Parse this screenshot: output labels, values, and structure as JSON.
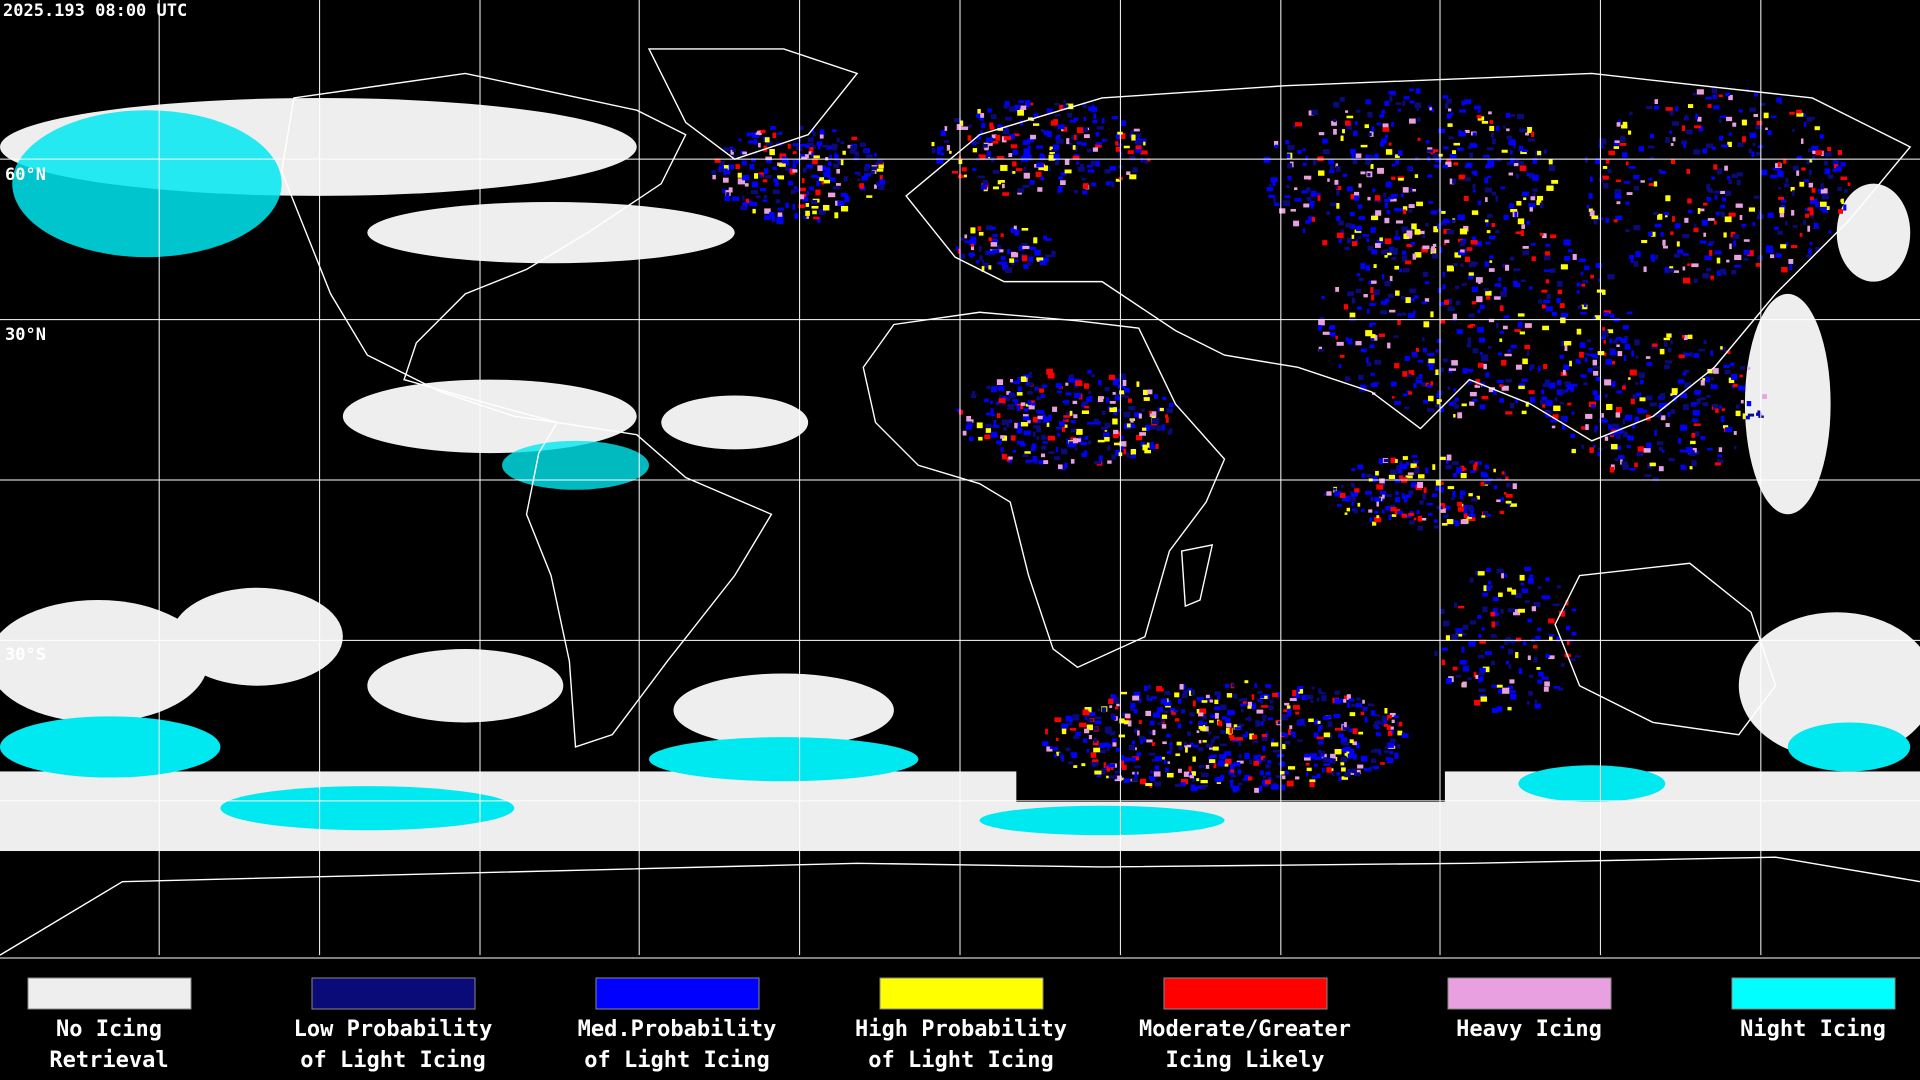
{
  "header": {
    "timestamp": "2025.193 08:00 UTC"
  },
  "map": {
    "latitude_labels": [
      "60°N",
      "30°N",
      "30°S"
    ]
  },
  "legend": {
    "items": [
      {
        "color": "#eeeeee",
        "label_lines": [
          "No Icing",
          "Retrieval"
        ]
      },
      {
        "color": "#0a0a78",
        "label_lines": [
          "Low Probability",
          "of Light Icing"
        ]
      },
      {
        "color": "#0000ff",
        "label_lines": [
          "Med.Probability",
          "of Light Icing"
        ]
      },
      {
        "color": "#ffff00",
        "label_lines": [
          "High Probability",
          "of Light Icing"
        ]
      },
      {
        "color": "#ff0000",
        "label_lines": [
          "Moderate/Greater",
          "Icing Likely"
        ]
      },
      {
        "color": "#e8a0e0",
        "label_lines": [
          "Heavy Icing"
        ]
      },
      {
        "color": "#00ffff",
        "label_lines": [
          "Night Icing"
        ]
      }
    ]
  }
}
